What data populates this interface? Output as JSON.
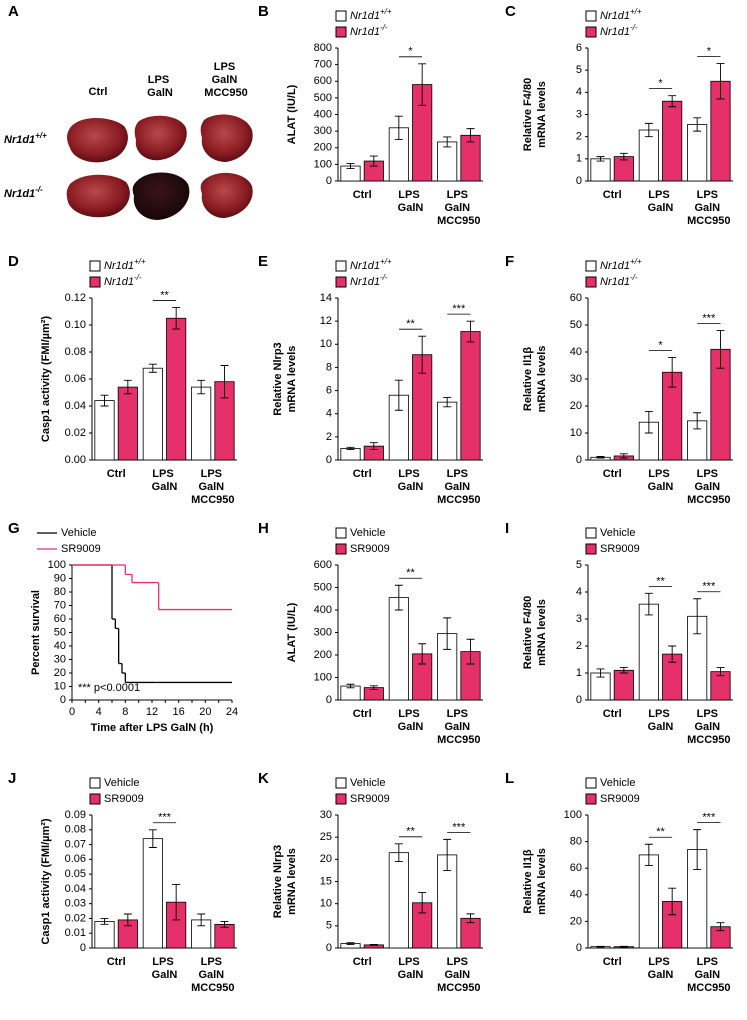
{
  "photo_panel": {
    "letter": "A",
    "columns": [
      "Ctrl",
      "LPS GalN",
      "LPS GalN MCC950"
    ],
    "rows": [
      "Nr1d1+/+",
      "Nr1d1-/-"
    ]
  },
  "chart_data": [
    {
      "panel": "B",
      "type": "bar",
      "ylabel": [
        "ALAT (IU/L)"
      ],
      "categories": [
        "Ctrl",
        "LPS GalN",
        "LPS GalN MCC950"
      ],
      "ylim": [
        0,
        800
      ],
      "yticks": [
        0,
        100,
        200,
        300,
        400,
        500,
        600,
        700,
        800
      ],
      "series": [
        {
          "name": "Nr1d1+/+",
          "color": "#ffffff",
          "values": [
            90,
            320,
            235
          ],
          "errors": [
            15,
            70,
            30
          ]
        },
        {
          "name": "Nr1d1-/-",
          "color": "#e6306a",
          "values": [
            120,
            580,
            275
          ],
          "errors": [
            30,
            125,
            40
          ]
        }
      ],
      "annotations": [
        {
          "text": "*",
          "category": 1
        }
      ]
    },
    {
      "panel": "C",
      "type": "bar",
      "ylabel": [
        "Relative F4/80",
        "mRNA levels"
      ],
      "categories": [
        "Ctrl",
        "LPS GalN",
        "LPS GalN MCC950"
      ],
      "ylim": [
        0,
        6
      ],
      "yticks": [
        0,
        1,
        2,
        3,
        4,
        5,
        6
      ],
      "series": [
        {
          "name": "Nr1d1+/+",
          "color": "#ffffff",
          "values": [
            1.0,
            2.3,
            2.55
          ],
          "errors": [
            0.1,
            0.3,
            0.3
          ]
        },
        {
          "name": "Nr1d1-/-",
          "color": "#e6306a",
          "values": [
            1.1,
            3.6,
            4.5
          ],
          "errors": [
            0.15,
            0.25,
            0.8
          ]
        }
      ],
      "annotations": [
        {
          "text": "*",
          "category": 1
        },
        {
          "text": "*",
          "category": 2
        }
      ]
    },
    {
      "panel": "D",
      "type": "bar",
      "ylabel": [
        "Casp1 activity (FMI/µm²)"
      ],
      "categories": [
        "Ctrl",
        "LPS GalN",
        "LPS GalN MCC950"
      ],
      "ylim": [
        0,
        0.12
      ],
      "yticks": [
        {
          "value": 0,
          "label": "0.00"
        },
        {
          "value": 0.02,
          "label": "0.02"
        },
        {
          "value": 0.04,
          "label": "0.04"
        },
        {
          "value": 0.06,
          "label": "0.06"
        },
        {
          "value": 0.08,
          "label": "0.08"
        },
        {
          "value": 0.1,
          "label": "0.10"
        },
        {
          "value": 0.12,
          "label": "0.12"
        }
      ],
      "series": [
        {
          "name": "Nr1d1+/+",
          "color": "#ffffff",
          "values": [
            0.044,
            0.068,
            0.054
          ],
          "errors": [
            0.004,
            0.003,
            0.005
          ]
        },
        {
          "name": "Nr1d1-/-",
          "color": "#e6306a",
          "values": [
            0.054,
            0.105,
            0.058
          ],
          "errors": [
            0.005,
            0.008,
            0.012
          ]
        }
      ],
      "annotations": [
        {
          "text": "**",
          "category": 1
        }
      ]
    },
    {
      "panel": "E",
      "type": "bar",
      "ylabel": [
        "Relative Nlrp3",
        "mRNA levels"
      ],
      "categories": [
        "Ctrl",
        "LPS GalN",
        "LPS GalN MCC950"
      ],
      "ylim": [
        0,
        14
      ],
      "yticks": [
        0,
        2,
        4,
        6,
        8,
        10,
        12,
        14
      ],
      "series": [
        {
          "name": "Nr1d1+/+",
          "color": "#ffffff",
          "values": [
            1.0,
            5.6,
            5.0
          ],
          "errors": [
            0.1,
            1.3,
            0.4
          ]
        },
        {
          "name": "Nr1d1-/-",
          "color": "#e6306a",
          "values": [
            1.2,
            9.1,
            11.1
          ],
          "errors": [
            0.3,
            1.6,
            0.9
          ]
        }
      ],
      "annotations": [
        {
          "text": "**",
          "category": 1
        },
        {
          "text": "***",
          "category": 2
        }
      ]
    },
    {
      "panel": "F",
      "type": "bar",
      "ylabel": [
        "Relative Il1β",
        "mRNA levels"
      ],
      "categories": [
        "Ctrl",
        "LPS GalN",
        "LPS GalN MCC950"
      ],
      "ylim": [
        0,
        60
      ],
      "yticks": [
        0,
        10,
        20,
        30,
        40,
        50,
        60
      ],
      "series": [
        {
          "name": "Nr1d1+/+",
          "color": "#ffffff",
          "values": [
            1,
            14,
            14.5
          ],
          "errors": [
            0.3,
            4,
            3
          ]
        },
        {
          "name": "Nr1d1-/-",
          "color": "#e6306a",
          "values": [
            1.5,
            32.5,
            41
          ],
          "errors": [
            0.8,
            5.5,
            7
          ]
        }
      ],
      "annotations": [
        {
          "text": "*",
          "category": 1
        },
        {
          "text": "***",
          "category": 2
        }
      ]
    },
    {
      "panel": "G",
      "type": "line",
      "step": "post",
      "ylabel": [
        "Percent survival"
      ],
      "xlabel": "Time after LPS GalN (h)",
      "annotation": "*** p<0.0001",
      "x": [
        0,
        6,
        6.5,
        7,
        7.5,
        8,
        9,
        12.5,
        13,
        24
      ],
      "xlim": [
        0,
        24
      ],
      "xticks": [
        0,
        2,
        4,
        6,
        8,
        10,
        12,
        14,
        16,
        18,
        20,
        22,
        24
      ],
      "ylim": [
        0,
        100
      ],
      "yticks": [
        0,
        10,
        20,
        30,
        40,
        50,
        60,
        70,
        80,
        90,
        100
      ],
      "series": [
        {
          "name": "Vehicle",
          "color": "#000000",
          "values": [
            100,
            60,
            53,
            27,
            20,
            13,
            13,
            13,
            13,
            13
          ]
        },
        {
          "name": "SR9009",
          "color": "#e6306a",
          "values": [
            100,
            100,
            100,
            100,
            100,
            93,
            87,
            87,
            67,
            67
          ]
        }
      ]
    },
    {
      "panel": "H",
      "type": "bar",
      "ylabel": [
        "ALAT (IU/L)"
      ],
      "categories": [
        "Ctrl",
        "LPS GalN",
        "LPS GalN MCC950"
      ],
      "ylim": [
        0,
        600
      ],
      "yticks": [
        0,
        100,
        200,
        300,
        400,
        500,
        600
      ],
      "series": [
        {
          "name": "Vehicle",
          "color": "#ffffff",
          "values": [
            62,
            455,
            295
          ],
          "errors": [
            8,
            55,
            70
          ]
        },
        {
          "name": "SR9009",
          "color": "#e6306a",
          "values": [
            55,
            205,
            215
          ],
          "errors": [
            8,
            45,
            55
          ]
        }
      ],
      "annotations": [
        {
          "text": "**",
          "category": 1
        }
      ]
    },
    {
      "panel": "I",
      "type": "bar",
      "ylabel": [
        "Relative F4/80",
        "mRNA levels"
      ],
      "categories": [
        "Ctrl",
        "LPS GalN",
        "LPS GalN MCC950"
      ],
      "ylim": [
        0,
        5
      ],
      "yticks": [
        0,
        1,
        2,
        3,
        4,
        5
      ],
      "series": [
        {
          "name": "Vehicle",
          "color": "#ffffff",
          "values": [
            1.0,
            3.55,
            3.1
          ],
          "errors": [
            0.15,
            0.4,
            0.65
          ]
        },
        {
          "name": "SR9009",
          "color": "#e6306a",
          "values": [
            1.1,
            1.7,
            1.05
          ],
          "errors": [
            0.1,
            0.3,
            0.15
          ]
        }
      ],
      "annotations": [
        {
          "text": "**",
          "category": 1
        },
        {
          "text": "***",
          "category": 2
        }
      ]
    },
    {
      "panel": "J",
      "type": "bar",
      "ylabel": [
        "Casp1 activity (FMI/µm²)"
      ],
      "categories": [
        "Ctrl",
        "LPS GalN",
        "LPS GalN MCC950"
      ],
      "ylim": [
        0,
        0.09
      ],
      "yticks": [
        0,
        0.01,
        0.02,
        0.03,
        0.04,
        0.05,
        0.06,
        0.07,
        0.08,
        0.09
      ],
      "series": [
        {
          "name": "Vehicle",
          "color": "#ffffff",
          "values": [
            0.018,
            0.074,
            0.019
          ],
          "errors": [
            0.002,
            0.006,
            0.004
          ]
        },
        {
          "name": "SR9009",
          "color": "#e6306a",
          "values": [
            0.019,
            0.031,
            0.016
          ],
          "errors": [
            0.004,
            0.012,
            0.002
          ]
        }
      ],
      "annotations": [
        {
          "text": "***",
          "category": 1
        }
      ]
    },
    {
      "panel": "K",
      "type": "bar",
      "ylabel": [
        "Relative Nlrp3",
        "mRNA levels"
      ],
      "categories": [
        "Ctrl",
        "LPS GalN",
        "LPS GalN MCC950"
      ],
      "ylim": [
        0,
        30
      ],
      "yticks": [
        0,
        5,
        10,
        15,
        20,
        25,
        30
      ],
      "series": [
        {
          "name": "Vehicle",
          "color": "#ffffff",
          "values": [
            1,
            21.5,
            21
          ],
          "errors": [
            0.2,
            2,
            3.5
          ]
        },
        {
          "name": "SR9009",
          "color": "#e6306a",
          "values": [
            0.7,
            10.2,
            6.7
          ],
          "errors": [
            0.1,
            2.3,
            1
          ]
        }
      ],
      "annotations": [
        {
          "text": "**",
          "category": 1
        },
        {
          "text": "***",
          "category": 2
        }
      ]
    },
    {
      "panel": "L",
      "type": "bar",
      "ylabel": [
        "Relative Il1β",
        "mRNA levels"
      ],
      "categories": [
        "Ctrl",
        "LPS GalN",
        "LPS GalN MCC950"
      ],
      "ylim": [
        0,
        100
      ],
      "yticks": [
        0,
        20,
        40,
        60,
        80,
        100
      ],
      "series": [
        {
          "name": "Vehicle",
          "color": "#ffffff",
          "values": [
            1,
            70,
            74
          ],
          "errors": [
            0.3,
            8,
            15
          ]
        },
        {
          "name": "SR9009",
          "color": "#e6306a",
          "values": [
            1,
            35,
            16
          ],
          "errors": [
            0.3,
            10,
            3
          ]
        }
      ],
      "annotations": [
        {
          "text": "**",
          "category": 1
        },
        {
          "text": "***",
          "category": 2
        }
      ]
    }
  ]
}
